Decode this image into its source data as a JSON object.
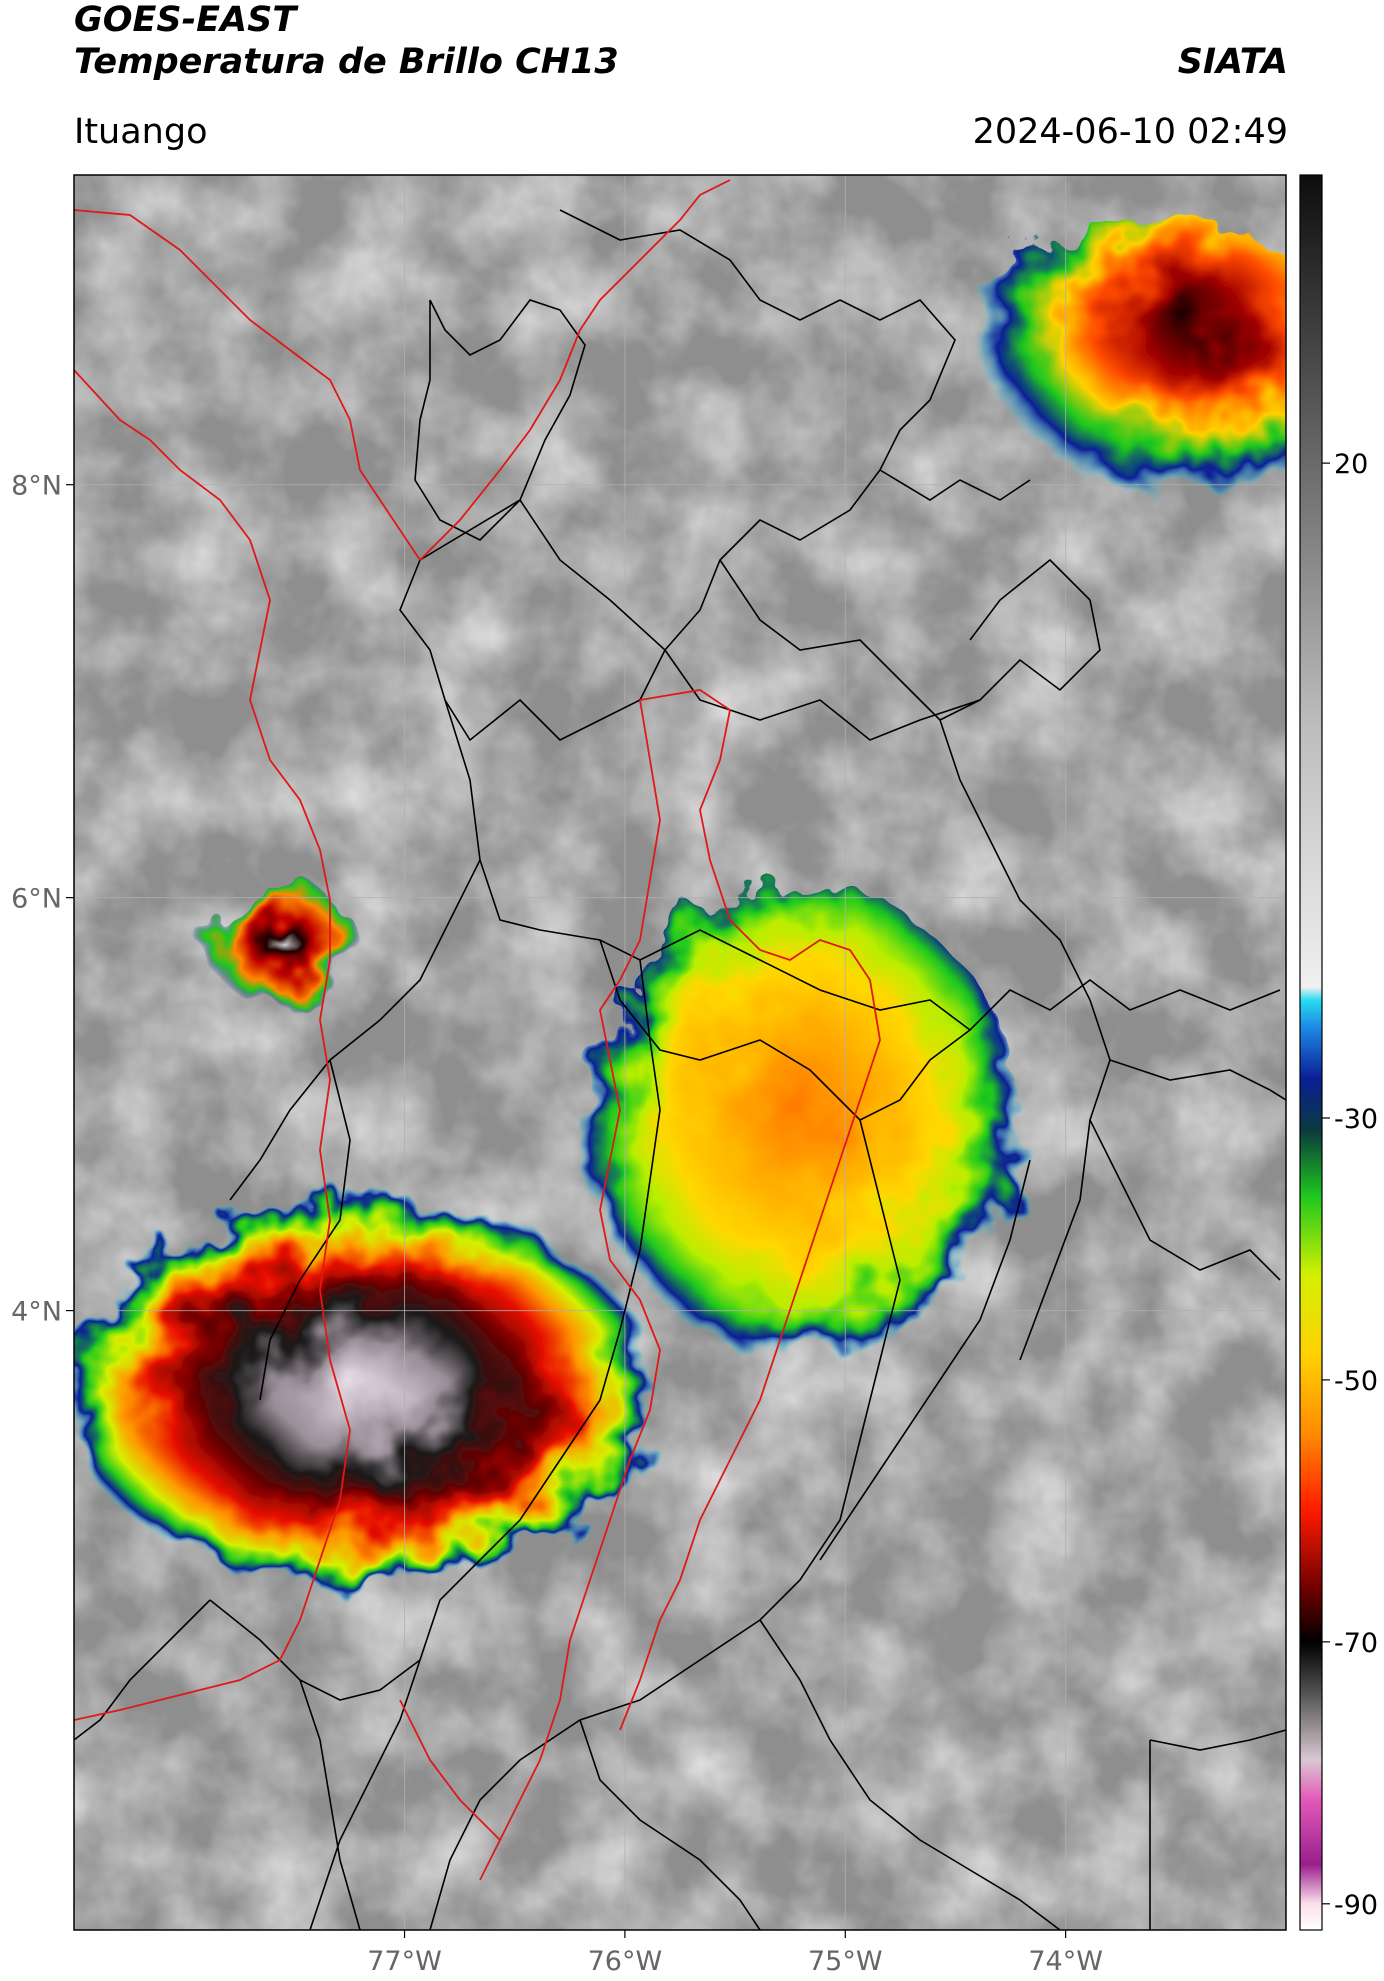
{
  "header": {
    "satellite": "GOES-EAST",
    "product": "Temperatura de Brillo CH13",
    "agency": "SIATA",
    "region": "Ituango",
    "datetime": "2024-06-10 02:49"
  },
  "map": {
    "lon_range": [
      -78.5,
      -73.0
    ],
    "lat_range": [
      1.0,
      9.5
    ],
    "lon_ticks": [
      -77,
      -76,
      -75,
      -74
    ],
    "lat_ticks": [
      8,
      6,
      4
    ],
    "lon_labels": [
      "77°W",
      "76°W",
      "75°W",
      "74°W"
    ],
    "lat_labels": [
      "8°N",
      "6°N",
      "4°N"
    ],
    "gridlines": true,
    "boundary_colors": {
      "country": "#000000",
      "region": "#e01818"
    },
    "storm_cells": [
      {
        "name": "southwest-mcs",
        "lon": -77.2,
        "lat": 3.6,
        "rx": 1.35,
        "ry": 0.95,
        "min_temp": -88
      },
      {
        "name": "northwest-cell",
        "lon": -77.55,
        "lat": 5.75,
        "rx": 0.35,
        "ry": 0.3,
        "min_temp": -72
      },
      {
        "name": "central-cell",
        "lon": -75.2,
        "lat": 4.85,
        "rx": 1.0,
        "ry": 1.2,
        "min_temp": -64
      },
      {
        "name": "northeast-cell",
        "lon": -73.6,
        "lat": 8.55,
        "rx": 0.9,
        "ry": 0.75,
        "min_temp": -68
      }
    ]
  },
  "colorbar": {
    "label_values": [
      20,
      -30,
      -50,
      -70,
      -90
    ],
    "labels": [
      "20",
      "-30",
      "-50",
      "-70",
      "-90"
    ],
    "range": [
      -92,
      42
    ],
    "stops": [
      {
        "t": -92,
        "color": "#ffffff"
      },
      {
        "t": -90,
        "color": "#fce0ec"
      },
      {
        "t": -87,
        "color": "#9a1e8c"
      },
      {
        "t": -82,
        "color": "#e35ab8"
      },
      {
        "t": -79,
        "color": "#d8c8d2"
      },
      {
        "t": -74,
        "color": "#555555"
      },
      {
        "t": -70,
        "color": "#000000"
      },
      {
        "t": -66,
        "color": "#6e0000"
      },
      {
        "t": -60,
        "color": "#ff1a00"
      },
      {
        "t": -54,
        "color": "#ff8c00"
      },
      {
        "t": -48,
        "color": "#ffd200"
      },
      {
        "t": -42,
        "color": "#d4f000"
      },
      {
        "t": -36,
        "color": "#1ec81e"
      },
      {
        "t": -31,
        "color": "#0a3c3c"
      },
      {
        "t": -27,
        "color": "#0a1e96"
      },
      {
        "t": -23,
        "color": "#1e8ce6"
      },
      {
        "t": -21,
        "color": "#28dcf0"
      },
      {
        "t": -20,
        "color": "#f0f0f0"
      },
      {
        "t": 0,
        "color": "#bdbdbd"
      },
      {
        "t": 20,
        "color": "#6a6a6a"
      },
      {
        "t": 42,
        "color": "#0d0d0d"
      }
    ]
  }
}
